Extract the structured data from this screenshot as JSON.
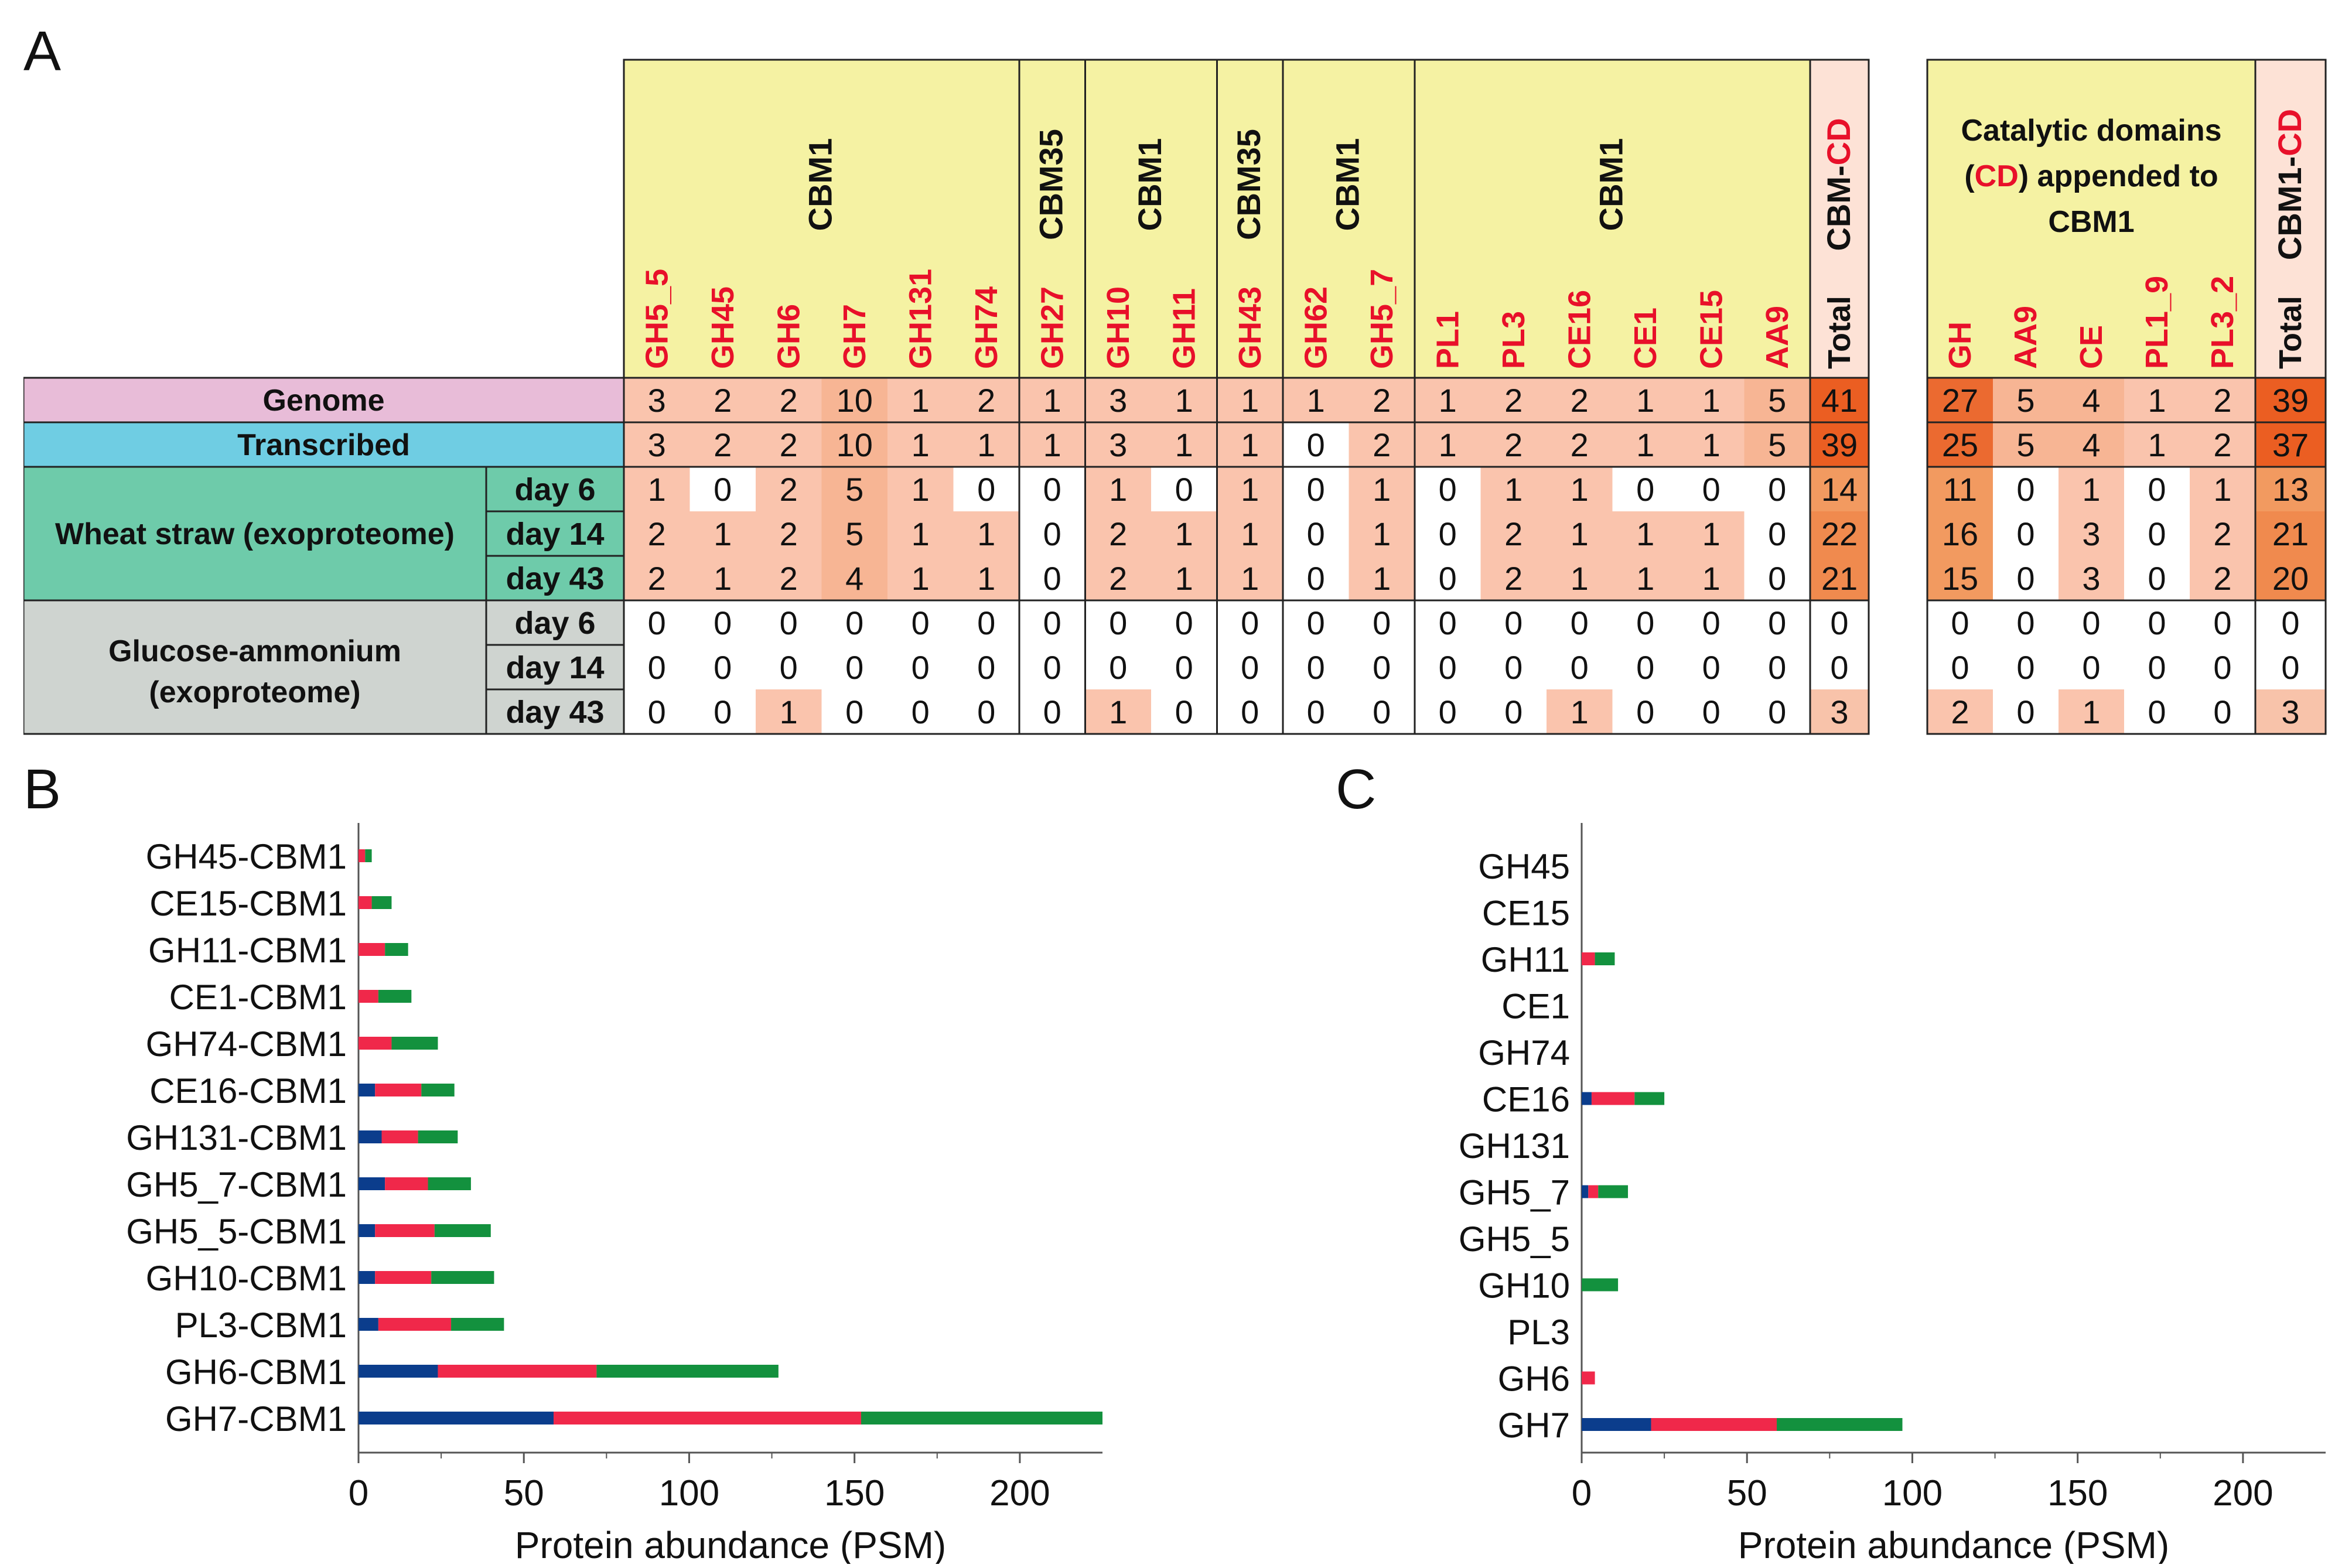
{
  "panels": {
    "a": "A",
    "b": "B",
    "c": "C"
  },
  "colors": {
    "yellow": "#f5f2a3",
    "pink_header": "#fde2d6",
    "row_genome": "#e8bcd8",
    "row_transcribed": "#6fcde3",
    "row_wheat": "#6ecbaa",
    "row_glucose": "#cfd4d0",
    "red_text": "#e8102a",
    "series_day6": "#0b3d8c",
    "series_day14": "#f0284a",
    "series_day43": "#13913e"
  },
  "table": {
    "groups": [
      {
        "label": "CBM1",
        "cols": [
          "GH5_5",
          "GH45",
          "GH6",
          "GH7",
          "GH131",
          "GH74"
        ]
      },
      {
        "label": "CBM35",
        "cols": [
          "GH27"
        ]
      },
      {
        "label": "CBM1",
        "cols": [
          "GH10",
          "GH11"
        ]
      },
      {
        "label": "CBM35",
        "cols": [
          "GH43"
        ]
      },
      {
        "label": "CBM1",
        "cols": [
          "GH62",
          "GH5_7"
        ]
      },
      {
        "label": "CBM1",
        "cols": [
          "PL1",
          "PL3",
          "CE16",
          "CE1",
          "CE15",
          "AA9"
        ]
      }
    ],
    "total_header": {
      "pre": "CBM-",
      "post": "CD",
      "col": "Total"
    },
    "right_header": {
      "line1": "Catalytic domains",
      "line2_pre": "(",
      "line2_red": "CD",
      "line2_post": ") appended to",
      "line3": "CBM1"
    },
    "right_cols": [
      "GH",
      "AA9",
      "CE",
      "PL1_9",
      "PL3_2"
    ],
    "right_total_header": {
      "pre": "CBM1-",
      "post": "CD",
      "col": "Total"
    },
    "row_groups": [
      {
        "label": "Genome",
        "label2": "",
        "sub": [
          ""
        ]
      },
      {
        "label": "Transcribed",
        "label2": "",
        "sub": [
          ""
        ]
      },
      {
        "label": "Wheat straw (exoproteome)",
        "label2": "",
        "sub": [
          "day 6",
          "day 14",
          "day 43"
        ]
      },
      {
        "label": "Glucose-ammonium",
        "label2": "(exoproteome)",
        "sub": [
          "day 6",
          "day 14",
          "day 43"
        ]
      }
    ],
    "rows": [
      {
        "left": [
          "3",
          "2",
          "2",
          "10",
          "1",
          "2",
          "1",
          "3",
          "1",
          "1",
          "1",
          "2",
          "1",
          "2",
          "2",
          "1",
          "1",
          "5"
        ],
        "total": "41",
        "right": [
          "27",
          "5",
          "4",
          "1",
          "2"
        ],
        "rtotal": "39"
      },
      {
        "left": [
          "3",
          "2",
          "2",
          "10",
          "1",
          "1",
          "1",
          "3",
          "1",
          "1",
          "0",
          "2",
          "1",
          "2",
          "2",
          "1",
          "1",
          "5"
        ],
        "total": "39",
        "right": [
          "25",
          "5",
          "4",
          "1",
          "2"
        ],
        "rtotal": "37"
      },
      {
        "left": [
          "1",
          "0",
          "2",
          "5",
          "1",
          "0",
          "0",
          "1",
          "0",
          "1",
          "0",
          "1",
          "0",
          "1",
          "1",
          "0",
          "0",
          "0"
        ],
        "total": "14",
        "right": [
          "11",
          "0",
          "1",
          "0",
          "1"
        ],
        "rtotal": "13"
      },
      {
        "left": [
          "2",
          "1",
          "2",
          "5",
          "1",
          "1",
          "0",
          "2",
          "1",
          "1",
          "0",
          "1",
          "0",
          "2",
          "1",
          "1",
          "1",
          "0"
        ],
        "total": "22",
        "right": [
          "16",
          "0",
          "3",
          "0",
          "2"
        ],
        "rtotal": "21"
      },
      {
        "left": [
          "2",
          "1",
          "2",
          "4",
          "1",
          "1",
          "0",
          "2",
          "1",
          "1",
          "0",
          "1",
          "0",
          "2",
          "1",
          "1",
          "1",
          "0"
        ],
        "total": "21",
        "right": [
          "15",
          "0",
          "3",
          "0",
          "2"
        ],
        "rtotal": "20"
      },
      {
        "left": [
          "0",
          "0",
          "0",
          "0",
          "0",
          "0",
          "0",
          "0",
          "0",
          "0",
          "0",
          "0",
          "0",
          "0",
          "0",
          "0",
          "0",
          "0"
        ],
        "total": "0",
        "right": [
          "0",
          "0",
          "0",
          "0",
          "0"
        ],
        "rtotal": "0"
      },
      {
        "left": [
          "0",
          "0",
          "0",
          "0",
          "0",
          "0",
          "0",
          "0",
          "0",
          "0",
          "0",
          "0",
          "0",
          "0",
          "0",
          "0",
          "0",
          "0"
        ],
        "total": "0",
        "right": [
          "0",
          "0",
          "0",
          "0",
          "0"
        ],
        "rtotal": "0"
      },
      {
        "left": [
          "0",
          "0",
          "1",
          "0",
          "0",
          "0",
          "0",
          "1",
          "0",
          "0",
          "0",
          "0",
          "0",
          "0",
          "1",
          "0",
          "0",
          "0"
        ],
        "total": "3",
        "right": [
          "2",
          "0",
          "1",
          "0",
          "0"
        ],
        "rtotal": "3"
      }
    ]
  },
  "chart_data": [
    {
      "type": "bar",
      "orientation": "horizontal",
      "stacked": true,
      "panel": "B",
      "xlabel": "Protein abundance (PSM)",
      "xlim": [
        0,
        225
      ],
      "xticks": [
        0,
        50,
        100,
        150,
        200
      ],
      "categories": [
        "GH45-CBM1",
        "CE15-CBM1",
        "GH11-CBM1",
        "CE1-CBM1",
        "GH74-CBM1",
        "CE16-CBM1",
        "GH131-CBM1",
        "GH5_7-CBM1",
        "GH5_5-CBM1",
        "GH10-CBM1",
        "PL3-CBM1",
        "GH6-CBM1",
        "GH7-CBM1"
      ],
      "series": [
        {
          "name": "day 6",
          "values": [
            0,
            0,
            0,
            0,
            0,
            5,
            7,
            8,
            5,
            5,
            6,
            24,
            59
          ]
        },
        {
          "name": "day 14",
          "values": [
            2,
            4,
            8,
            6,
            10,
            14,
            11,
            13,
            18,
            17,
            22,
            48,
            93
          ]
        },
        {
          "name": "day 43",
          "values": [
            2,
            6,
            7,
            10,
            14,
            10,
            12,
            13,
            17,
            19,
            16,
            55,
            73
          ]
        }
      ]
    },
    {
      "type": "bar",
      "orientation": "horizontal",
      "stacked": true,
      "panel": "C",
      "xlabel": "Protein abundance (PSM)",
      "xlim": [
        0,
        225
      ],
      "xticks": [
        0,
        50,
        100,
        150,
        200
      ],
      "categories": [
        "GH45",
        "CE15",
        "GH11",
        "CE1",
        "GH74",
        "CE16",
        "GH131",
        "GH5_7",
        "GH5_5",
        "GH10",
        "PL3",
        "GH6",
        "GH7"
      ],
      "series": [
        {
          "name": "day 6",
          "values": [
            0,
            0,
            0,
            0,
            0,
            3,
            0,
            2,
            0,
            0,
            0,
            0,
            21
          ]
        },
        {
          "name": "day 14",
          "values": [
            0,
            0,
            4,
            0,
            0,
            13,
            0,
            3,
            0,
            0,
            0,
            4,
            38
          ]
        },
        {
          "name": "day 43",
          "values": [
            0,
            0,
            6,
            0,
            0,
            9,
            0,
            9,
            0,
            11,
            0,
            0,
            38
          ]
        }
      ]
    }
  ]
}
